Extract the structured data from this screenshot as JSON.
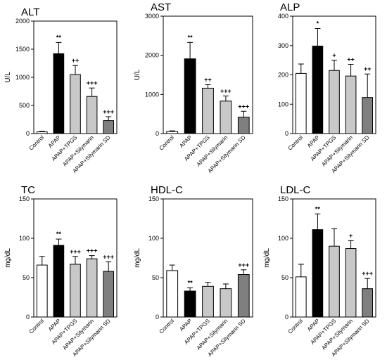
{
  "colors": {
    "bar_fills": [
      "#ffffff",
      "#000000",
      "#c8c8c8",
      "#c8c8c8",
      "#7f7f7f"
    ],
    "stroke": "#000000"
  },
  "chart_data": [
    {
      "type": "bar",
      "title": "ALT",
      "ylabel": "U/L",
      "categories": [
        "Control",
        "APAP",
        "APAP+TPGS",
        "APAP+Silymarin",
        "APAP+Silymarin SD"
      ],
      "values": [
        30,
        1420,
        1050,
        660,
        230
      ],
      "errors": [
        10,
        200,
        160,
        150,
        70
      ],
      "significance": [
        "",
        "**",
        "++",
        "+++",
        "+++"
      ],
      "ylim": [
        0,
        2000
      ],
      "yticks": [
        0,
        500,
        1000,
        1500,
        2000
      ],
      "ytick_labels": [
        "0",
        "500",
        "1000",
        "1500",
        "2000"
      ]
    },
    {
      "type": "bar",
      "title": "AST",
      "ylabel": "U/L",
      "categories": [
        "Control",
        "APAP",
        "APAP+TPGS",
        "APAP+Silymarin",
        "APAP+Silymarin SD"
      ],
      "values": [
        50,
        1910,
        1160,
        830,
        420
      ],
      "errors": [
        20,
        420,
        90,
        130,
        150
      ],
      "significance": [
        "",
        "**",
        "++",
        "+++",
        "+++"
      ],
      "ylim": [
        0,
        3000
      ],
      "yticks": [
        0,
        1000,
        2000,
        3000
      ],
      "ytick_labels": [
        "0",
        "1000",
        "2000",
        "3000"
      ]
    },
    {
      "type": "bar",
      "title": "ALP",
      "ylabel": "",
      "categories": [
        "Control",
        "APAP",
        "APAP+TPGS",
        "APAP+Silymarin",
        "APAP+Silymarin SD"
      ],
      "values": [
        205,
        298,
        215,
        196,
        123
      ],
      "errors": [
        32,
        60,
        35,
        40,
        80
      ],
      "significance": [
        "",
        "*",
        "+",
        "++",
        "++"
      ],
      "ylim": [
        0,
        400
      ],
      "yticks": [
        0,
        100,
        200,
        300,
        400
      ],
      "ytick_labels": [
        "0",
        "100",
        "200",
        "300",
        "400"
      ]
    },
    {
      "type": "bar",
      "title": "TC",
      "ylabel": "mg/dL",
      "categories": [
        "Control",
        "APAP",
        "APAP+TPGS",
        "APAP+Silymarin",
        "APAP+Silymarin SD"
      ],
      "values": [
        66,
        91,
        67,
        74,
        58
      ],
      "errors": [
        11,
        8,
        10,
        4,
        12
      ],
      "significance": [
        "",
        "**",
        "+++",
        "+++",
        "+++"
      ],
      "ylim": [
        0,
        150
      ],
      "yticks": [
        0,
        50,
        100,
        150
      ],
      "ytick_labels": [
        "0",
        "50",
        "100",
        "150"
      ]
    },
    {
      "type": "bar",
      "title": "HDL-C",
      "ylabel": "mg/dL",
      "categories": [
        "Control",
        "APAP",
        "APAP+TPGS",
        "APAP+Silymarin",
        "APAP+Silymarin SD"
      ],
      "values": [
        59,
        33,
        39,
        36,
        54
      ],
      "errors": [
        7,
        4,
        5,
        6,
        6
      ],
      "significance": [
        "",
        "**",
        "",
        "",
        "+++"
      ],
      "ylim": [
        0,
        150
      ],
      "yticks": [
        0,
        50,
        100,
        150
      ],
      "ytick_labels": [
        "0",
        "50",
        "100",
        "150"
      ]
    },
    {
      "type": "bar",
      "title": "LDL-C",
      "ylabel": "mg/dL",
      "categories": [
        "Control",
        "APAP",
        "APAP+TPGS",
        "APAP+Silymarin",
        "APAP+Silymarin SD"
      ],
      "values": [
        51,
        111,
        90,
        87,
        36
      ],
      "errors": [
        16,
        20,
        22,
        10,
        13
      ],
      "significance": [
        "",
        "**",
        "",
        "+",
        "+++"
      ],
      "ylim": [
        0,
        150
      ],
      "yticks": [
        0,
        50,
        100,
        150
      ],
      "ytick_labels": [
        "0",
        "50",
        "100",
        "150"
      ]
    }
  ]
}
